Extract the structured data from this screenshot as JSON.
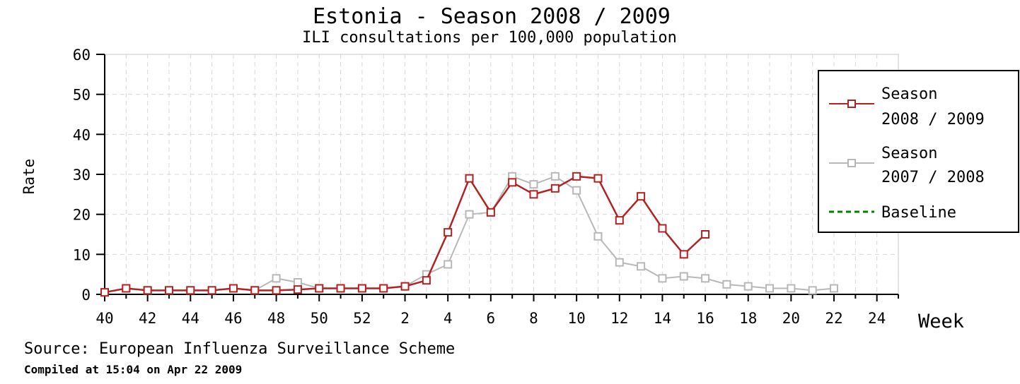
{
  "chart_data": {
    "type": "line",
    "title": "Estonia - Season 2008 / 2009",
    "subtitle": "ILI consultations per 100,000 population",
    "xlabel": "Week",
    "ylabel": "Rate",
    "ylim": [
      0,
      60
    ],
    "yticks": [
      0,
      10,
      20,
      30,
      40,
      50,
      60
    ],
    "weeks": [
      40,
      41,
      42,
      43,
      44,
      45,
      46,
      47,
      48,
      49,
      50,
      51,
      52,
      1,
      2,
      3,
      4,
      5,
      6,
      7,
      8,
      9,
      10,
      11,
      12,
      13,
      14,
      15,
      16,
      17,
      18,
      19,
      20,
      21,
      22,
      23,
      24,
      25
    ],
    "xtick_labels": [
      "40",
      "42",
      "44",
      "46",
      "48",
      "50",
      "52",
      "2",
      "4",
      "6",
      "8",
      "10",
      "12",
      "14",
      "16",
      "18",
      "20",
      "22",
      "24"
    ],
    "grid": true,
    "legend_position": "right",
    "series": [
      {
        "name": "Season\n2008 / 2009",
        "color": "#b22222",
        "values": [
          0.5,
          1.5,
          1.0,
          1.0,
          1.0,
          1.0,
          1.5,
          1.0,
          1.0,
          1.2,
          1.5,
          1.5,
          1.5,
          1.5,
          2.0,
          3.5,
          15.5,
          29,
          20.5,
          28,
          25,
          26.5,
          29.5,
          29,
          18.5,
          24.5,
          16.5,
          10,
          15
        ]
      },
      {
        "name": "Season\n2007 / 2008",
        "color": "#b8b8b8",
        "values": [
          0.5,
          1.5,
          1.0,
          1.0,
          1.0,
          1.0,
          1.5,
          1.0,
          4.0,
          3.0,
          1.5,
          1.5,
          1.5,
          1.5,
          2.0,
          5.0,
          7.5,
          20,
          20.5,
          29.5,
          27.5,
          29.5,
          26,
          14.5,
          8,
          7,
          4,
          4.5,
          4,
          2.5,
          2,
          1.5,
          1.5,
          1.0,
          1.5
        ]
      },
      {
        "name": "Baseline",
        "color": "#008000",
        "values": []
      }
    ]
  },
  "footer": {
    "source": "Source: European Influenza Surveillance Scheme",
    "compiled": "Compiled at 15:04 on Apr 22 2009"
  }
}
